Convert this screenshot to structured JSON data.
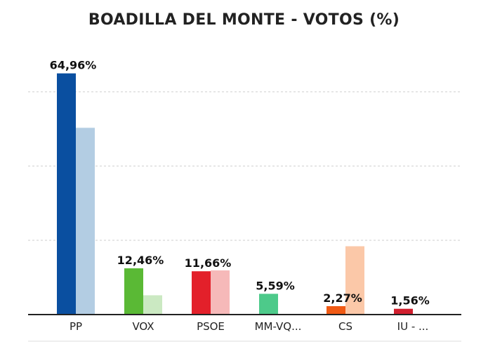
{
  "chart_data": {
    "type": "bar",
    "title": "BOADILLA DEL MONTE - VOTOS (%)",
    "categories": [
      "PP",
      "VOX",
      "PSOE",
      "MM-VQ...",
      "CS",
      "IU - ..."
    ],
    "series": [
      {
        "values": [
          64.96,
          12.46,
          11.66,
          5.59,
          2.27,
          1.56
        ]
      },
      {
        "values": [
          50.3,
          5.2,
          11.9,
          null,
          18.4,
          null
        ]
      }
    ],
    "value_labels": [
      "64,96%",
      "12,46%",
      "11,66%",
      "5,59%",
      "2,27%",
      "1,56%"
    ],
    "colors": {
      "current": [
        "#0a4fa0",
        "#5ab935",
        "#e3202a",
        "#4dca8a",
        "#f05a14",
        "#d11f2e"
      ],
      "previous": [
        "#b3cde3",
        "#cbe9c2",
        "#f6b9b9",
        "#bfeedd",
        "#fbc8a8",
        "#f3b7bd"
      ]
    },
    "ylim": [
      0,
      65
    ],
    "grid": true
  }
}
